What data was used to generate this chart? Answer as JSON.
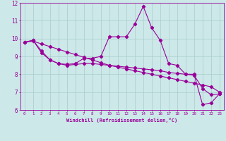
{
  "xlabel": "Windchill (Refroidissement éolien,°C)",
  "hours": [
    0,
    1,
    2,
    3,
    4,
    5,
    6,
    7,
    8,
    9,
    10,
    11,
    12,
    13,
    14,
    15,
    16,
    17,
    18,
    19,
    20,
    21,
    22,
    23
  ],
  "line1": [
    9.8,
    9.9,
    9.3,
    8.8,
    8.6,
    8.55,
    8.6,
    8.9,
    8.9,
    9.0,
    10.1,
    10.1,
    10.1,
    10.8,
    11.8,
    10.6,
    9.9,
    8.6,
    8.5,
    8.0,
    8.0,
    6.3,
    6.4,
    6.9
  ],
  "line2": [
    9.8,
    9.85,
    9.7,
    9.55,
    9.4,
    9.25,
    9.1,
    8.95,
    8.8,
    8.65,
    8.5,
    8.4,
    8.3,
    8.2,
    8.1,
    8.0,
    7.9,
    7.8,
    7.7,
    7.6,
    7.5,
    7.4,
    7.3,
    7.0
  ],
  "line3": [
    9.8,
    9.9,
    9.2,
    8.8,
    8.6,
    8.5,
    8.55,
    8.6,
    8.6,
    8.55,
    8.5,
    8.45,
    8.4,
    8.35,
    8.3,
    8.25,
    8.2,
    8.1,
    8.05,
    8.0,
    7.95,
    7.2,
    6.85,
    6.9
  ],
  "line_color": "#990099",
  "bg_color": "#cce8e8",
  "grid_color": "#aacccc",
  "ylim": [
    6,
    12
  ],
  "xlim": [
    -0.5,
    23.5
  ],
  "yticks": [
    6,
    7,
    8,
    9,
    10,
    11,
    12
  ],
  "xticks": [
    0,
    1,
    2,
    3,
    4,
    5,
    6,
    7,
    8,
    9,
    10,
    11,
    12,
    13,
    14,
    15,
    16,
    17,
    18,
    19,
    20,
    21,
    22,
    23
  ]
}
